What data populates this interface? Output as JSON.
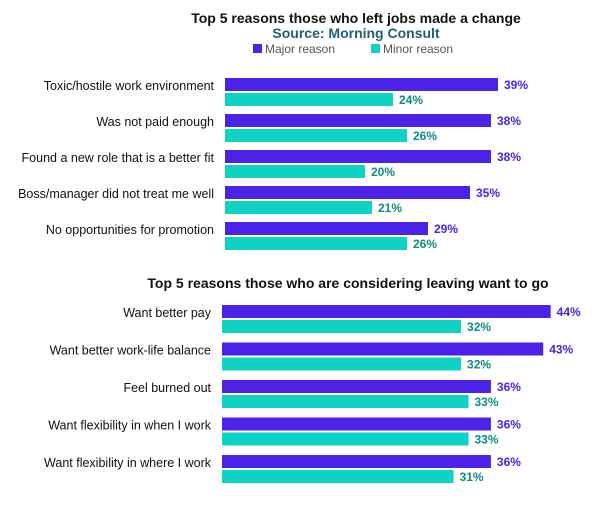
{
  "colors": {
    "major": "#4B22E6",
    "minor": "#0FD3C2",
    "subtitle": "#1F5F73",
    "major_label": "#4B22E6",
    "minor_label": "#0E8C82"
  },
  "chart_data": [
    {
      "type": "bar",
      "orientation": "horizontal",
      "title": "Top 5 reasons those who left jobs made a change",
      "subtitle": "Source: Morning Consult",
      "legend": [
        "Major reason",
        "Minor reason"
      ],
      "legend_position": "top-right",
      "categories": [
        "Toxic/hostile work environment",
        "Was not paid enough",
        "Found a new role that is a better fit",
        "Boss/manager did not treat me well",
        "No opportunities for promotion"
      ],
      "series": [
        {
          "name": "Major reason",
          "values": [
            39,
            38,
            38,
            35,
            29
          ],
          "labels": [
            "39%",
            "38%",
            "38%",
            "35%",
            "29%"
          ]
        },
        {
          "name": "Minor reason",
          "values": [
            24,
            26,
            20,
            21,
            26
          ],
          "labels": [
            "24%",
            "26%",
            "20%",
            "21%",
            "26%"
          ]
        }
      ],
      "xlim": [
        0,
        50
      ],
      "grid": false
    },
    {
      "type": "bar",
      "orientation": "horizontal",
      "title": "Top 5 reasons those who are considering leaving want to go",
      "categories": [
        "Want better pay",
        "Want better work-life balance",
        "Feel burned out",
        "Want flexibility in when I work",
        "Want flexibility in where I work"
      ],
      "series": [
        {
          "name": "Major reason",
          "values": [
            44,
            43,
            36,
            36,
            36
          ],
          "labels": [
            "44%",
            "43%",
            "36%",
            "36%",
            "36%"
          ]
        },
        {
          "name": "Minor reason",
          "values": [
            32,
            32,
            33,
            33,
            31
          ],
          "labels": [
            "32%",
            "32%",
            "33%",
            "33%",
            "31%"
          ]
        }
      ],
      "xlim": [
        0,
        50
      ],
      "grid": false
    }
  ]
}
